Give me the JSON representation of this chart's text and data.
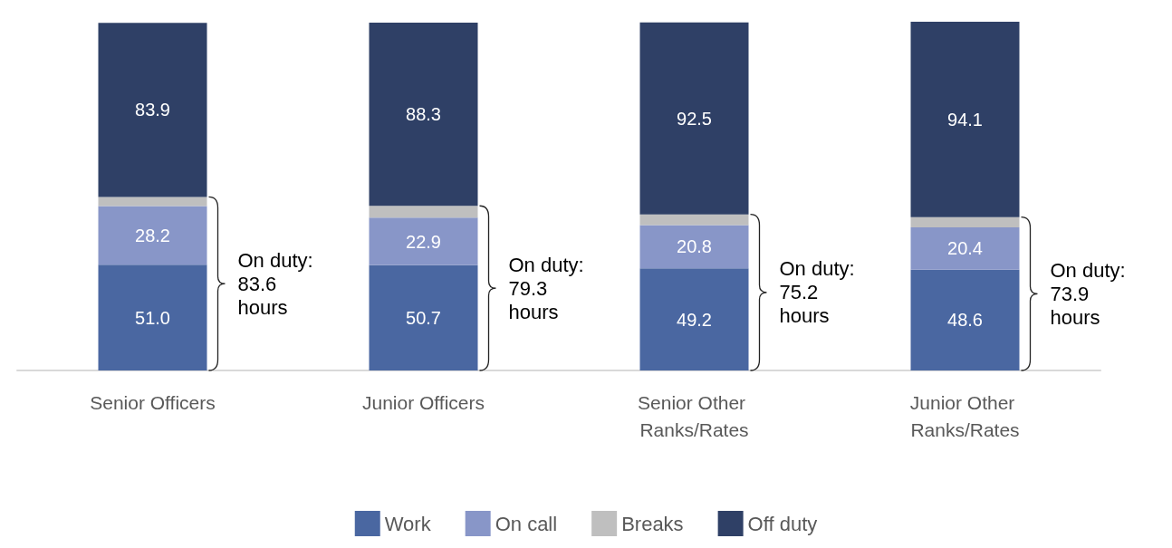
{
  "chart_data": {
    "type": "bar",
    "stacked": true,
    "categories": [
      "Senior Officers",
      "Junior Officers",
      "Senior Other Ranks/Rates",
      "Junior Other Ranks/Rates"
    ],
    "series": [
      {
        "name": "Work",
        "color": "#4a67a1",
        "values": [
          51.0,
          50.7,
          49.2,
          48.6
        ],
        "value_labels": [
          "51.0",
          "50.7",
          "49.2",
          "48.6"
        ]
      },
      {
        "name": "On call",
        "color": "#8896c8",
        "values": [
          28.2,
          22.9,
          20.8,
          20.4
        ],
        "value_labels": [
          "28.2",
          "22.9",
          "20.8",
          "20.4"
        ]
      },
      {
        "name": "Breaks",
        "color": "#bfbfbf",
        "values": [
          4.4,
          5.7,
          5.2,
          4.9
        ],
        "value_labels": [
          null,
          null,
          null,
          null
        ]
      },
      {
        "name": "Off duty",
        "color": "#2f4066",
        "values": [
          83.9,
          88.3,
          92.5,
          94.1
        ],
        "value_labels": [
          "83.9",
          "88.3",
          "92.5",
          "94.1"
        ]
      }
    ],
    "annotations": [
      "On duty:\n83.6\nhours",
      "On duty:\n79.3\nhours",
      "On duty:\n75.2\nhours",
      "On duty:\n73.9\nhours"
    ],
    "legend": "bottom",
    "grid": false
  }
}
